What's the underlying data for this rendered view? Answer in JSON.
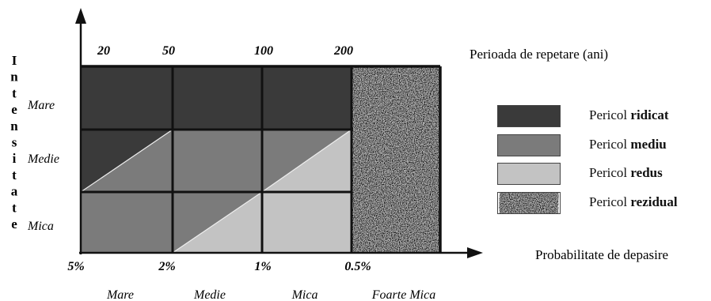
{
  "chart_data": {
    "type": "heatmap",
    "y_axis_label": "Intensitate",
    "x_axis_label": "Probabilitate de depasire",
    "top_axis_label": "Perioada de repetare (ani)",
    "return_periods": [
      "20",
      "50",
      "100",
      "200"
    ],
    "probabilities": [
      "5%",
      "2%",
      "1%",
      "0.5%"
    ],
    "intensity_levels": [
      "Mare",
      "Medie",
      "Mica"
    ],
    "probability_classes": [
      "Mare",
      "Medie",
      "Mica",
      "Foarte Mica"
    ],
    "cells": [
      [
        "ridicat",
        "ridicat",
        "ridicat",
        "rezidual"
      ],
      [
        "ridicat/mediu",
        "mediu",
        "mediu/redus",
        "rezidual"
      ],
      [
        "mediu",
        "mediu/redus",
        "redus",
        "rezidual"
      ]
    ]
  },
  "legend": [
    {
      "prefix": "Pericol",
      "level": "ridicat",
      "color": "#3a3a3a"
    },
    {
      "prefix": "Pericol",
      "level": "mediu",
      "color": "#7b7b7b"
    },
    {
      "prefix": "Pericol",
      "level": "redus",
      "color": "#c3c3c3"
    },
    {
      "prefix": "Pericol",
      "level": "rezidual",
      "color": "#b0b0b0"
    }
  ],
  "colors": {
    "ridicat": "#3a3a3a",
    "mediu": "#7b7b7b",
    "redus": "#c3c3c3",
    "rezidual": "#b0b0b0",
    "line": "#111111"
  }
}
